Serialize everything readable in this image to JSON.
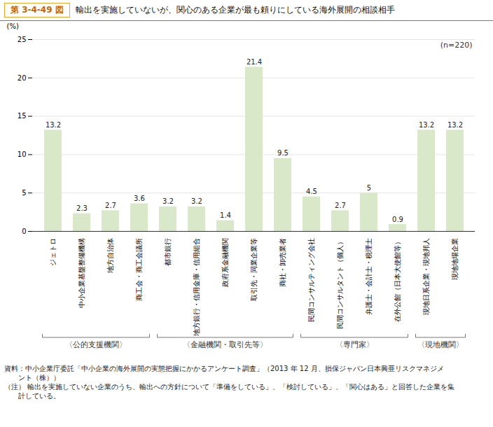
{
  "chart_data": {
    "type": "bar",
    "title": "輸出を実施していないが、関心のある企業が最も頼りにしている海外展開の相談相手",
    "annotations": [
      "第 3-4-49 図",
      "(n=220)"
    ],
    "ylabel": "(%)",
    "categories": [
      "ジェトロ",
      "中小企業基盤整備機構",
      "地方自治体",
      "商工会・商工会議所",
      "都市銀行",
      "地方銀行・信用金庫・信用組合",
      "政府系金融機関",
      "取引先・同業企業等",
      "商社・卸売業者",
      "民間コンサルティング会社",
      "民間コンサルタント（個人）",
      "弁護士・会計士・税理士",
      "在外公館（日本大使館等）",
      "現地日系企業・現地邦人",
      "現地地場企業"
    ],
    "values": [
      13.2,
      2.3,
      2.7,
      3.6,
      3.2,
      3.2,
      1.4,
      21.4,
      9.5,
      4.5,
      2.7,
      5.0,
      0.9,
      13.2,
      13.2
    ],
    "color": "#d8e8c8",
    "ylim": [
      0,
      25
    ],
    "yticks": [
      0,
      5,
      10,
      15,
      20,
      25
    ],
    "grid": true,
    "data_labels": true,
    "groups": [
      {
        "label": "〈公的支援機関〉",
        "from": "ジェトロ",
        "to": "商工会・商工会議所"
      },
      {
        "label": "〈金融機関・取引先等〉",
        "from": "都市銀行",
        "to": "商社・卸売業者"
      },
      {
        "label": "〈専門家〉",
        "from": "民間コンサルティング会社",
        "to": "在外公館（日本大使館等）"
      },
      {
        "label": "〈現地機関〉",
        "from": "現地日系企業・現地邦人",
        "to": "現地地場企業"
      }
    ],
    "footnotes": [
      "資料：中小企業庁委託「中小企業の海外展開の実態把握にかかるアンケート調査」（2013 年 12 月、損保ジャパン日本興亜リスクマネジメ",
      "　　ント（株））",
      "（注） 輸出を実施していない企業のうち、輸出への方針について「準備をしている」、「検討している」、「関心はある」と回答した企業を集",
      "　　計している。"
    ]
  }
}
